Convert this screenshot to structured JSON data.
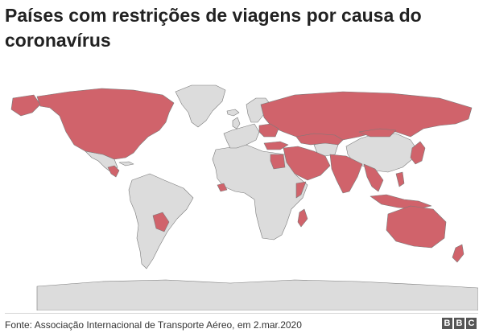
{
  "title": "Países com restrições de viagens por causa do coronavírus",
  "map": {
    "restricted_color": "#d0636b",
    "unrestricted_color": "#dcdcdc",
    "border_color": "#7a7a7a",
    "restricted_regions": [
      "USA",
      "Canada",
      "Mexico (partial)",
      "Central America (Guatemala, Honduras, El Salvador)",
      "Paraguay",
      "Russia",
      "Poland",
      "Ukraine region",
      "Turkey",
      "Egypt",
      "Saudi Arabia",
      "Iraq",
      "Iran",
      "Kuwait",
      "Qatar",
      "United Arab Emirates",
      "Oman",
      "Pakistan",
      "Afghanistan",
      "Kazakhstan",
      "India",
      "Myanmar",
      "Thailand",
      "Vietnam",
      "Philippines",
      "Indonesia",
      "Papua New Guinea",
      "Mongolia",
      "Japan",
      "Korea",
      "Australia",
      "New Zealand",
      "Madagascar",
      "Somalia",
      "Sierra Leone",
      "Liberia"
    ]
  },
  "footer": {
    "source": "Fonte: Associação Internacional de Transporte Aéreo, em 2.mar.2020",
    "logo_letters": [
      "B",
      "B",
      "C"
    ]
  }
}
